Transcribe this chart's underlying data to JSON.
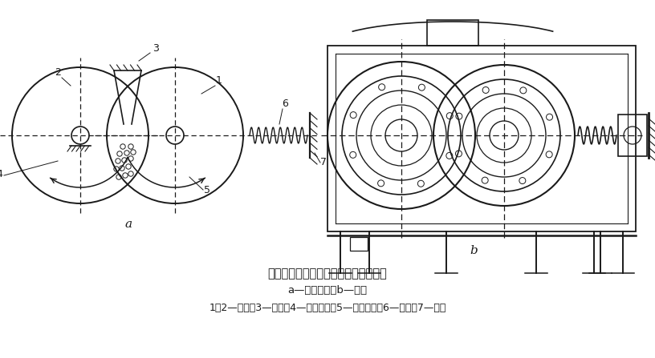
{
  "title": "双辊式破碎机的工作原理及结构示意图",
  "subtitle": "a—工作原理；b—结构",
  "caption": "1，2—辊子；3—物料；4—固定轴承；5—可动轴承；6—弹簧；7—机架",
  "label_a": "a",
  "label_b": "b",
  "bg_color": "#ffffff",
  "line_color": "#1a1a1a",
  "title_fontsize": 10.5,
  "caption_fontsize": 9
}
